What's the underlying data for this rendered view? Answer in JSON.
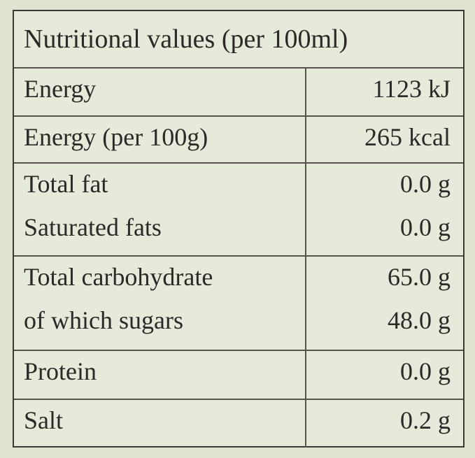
{
  "table": {
    "title": "Nutritional values (per 100ml)",
    "rows": [
      {
        "items": [
          {
            "label": "Energy",
            "value": "1123 kJ"
          }
        ]
      },
      {
        "items": [
          {
            "label": "Energy (per 100g)",
            "value": "265 kcal"
          }
        ]
      },
      {
        "items": [
          {
            "label": "Total fat",
            "value": "0.0 g"
          },
          {
            "label": "Saturated fats",
            "value": "0.0 g"
          }
        ]
      },
      {
        "items": [
          {
            "label": "Total carbohydrate",
            "value": "65.0 g"
          },
          {
            "label": "of which sugars",
            "value": "48.0 g"
          }
        ]
      },
      {
        "items": [
          {
            "label": "Protein",
            "value": "0.0 g"
          }
        ]
      },
      {
        "items": [
          {
            "label": "Salt",
            "value": "0.2 g"
          }
        ]
      }
    ]
  }
}
